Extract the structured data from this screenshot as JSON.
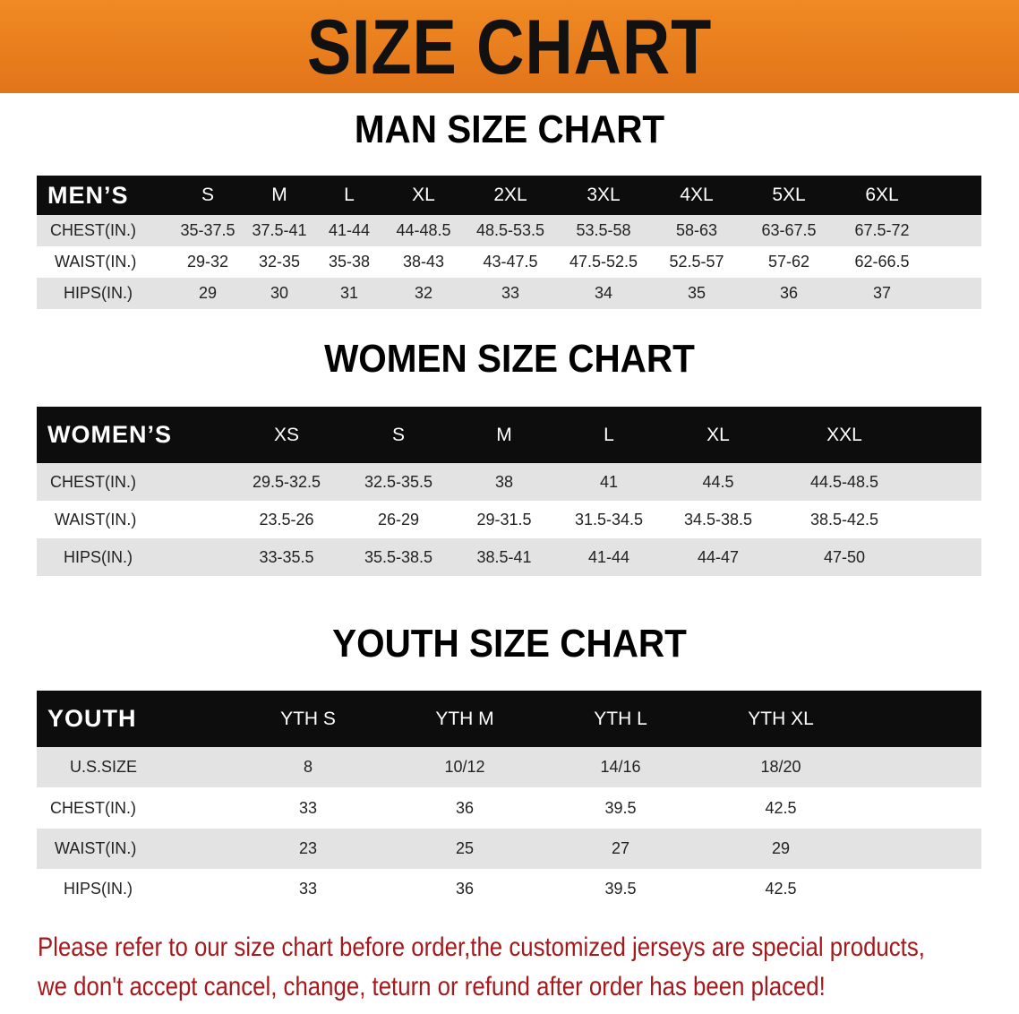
{
  "banner_title": "SIZE CHART",
  "men": {
    "title": "MAN SIZE CHART",
    "header_label": "MEN’S",
    "sizes": [
      "S",
      "M",
      "L",
      "XL",
      "2XL",
      "3XL",
      "4XL",
      "5XL",
      "6XL"
    ],
    "rows": [
      {
        "label": "CHEST(IN.)",
        "values": [
          "35-37.5",
          "37.5-41",
          "41-44",
          "44-48.5",
          "48.5-53.5",
          "53.5-58",
          "58-63",
          "63-67.5",
          "67.5-72"
        ]
      },
      {
        "label": "WAIST(IN.)",
        "values": [
          "29-32",
          "32-35",
          "35-38",
          "38-43",
          "43-47.5",
          "47.5-52.5",
          "52.5-57",
          "57-62",
          "62-66.5"
        ]
      },
      {
        "label": "HIPS(IN.)",
        "values": [
          "29",
          "30",
          "31",
          "32",
          "33",
          "34",
          "35",
          "36",
          "37"
        ]
      }
    ]
  },
  "women": {
    "title": "WOMEN SIZE CHART",
    "header_label": "WOMEN’S",
    "sizes": [
      "XS",
      "S",
      "M",
      "L",
      "XL",
      "XXL"
    ],
    "rows": [
      {
        "label": "CHEST(IN.)",
        "values": [
          "29.5-32.5",
          "32.5-35.5",
          "38",
          "41",
          "44.5",
          "44.5-48.5"
        ]
      },
      {
        "label": "WAIST(IN.)",
        "values": [
          "23.5-26",
          "26-29",
          "29-31.5",
          "31.5-34.5",
          "34.5-38.5",
          "38.5-42.5"
        ]
      },
      {
        "label": "HIPS(IN.)",
        "values": [
          "33-35.5",
          "35.5-38.5",
          "38.5-41",
          "41-44",
          "44-47",
          "47-50"
        ]
      }
    ]
  },
  "youth": {
    "title": "YOUTH SIZE CHART",
    "header_label": "YOUTH",
    "sizes": [
      "YTH S",
      "YTH M",
      "YTH L",
      "YTH XL"
    ],
    "rows": [
      {
        "label": "U.S.SIZE",
        "values": [
          "8",
          "10/12",
          "14/16",
          "18/20"
        ]
      },
      {
        "label": "CHEST(IN.)",
        "values": [
          "33",
          "36",
          "39.5",
          "42.5"
        ]
      },
      {
        "label": "WAIST(IN.)",
        "values": [
          "23",
          "25",
          "27",
          "29"
        ]
      },
      {
        "label": "HIPS(IN.)",
        "values": [
          "33",
          "36",
          "39.5",
          "42.5"
        ]
      }
    ]
  },
  "notice": {
    "line1": "Please refer to our size chart before order,the customized jerseys are special products,",
    "line2": "we don't accept cancel, change, teturn or refund after order has been placed!"
  },
  "colors": {
    "banner": "#e8781c",
    "header_row": "#0d0d0d",
    "stripe": "#e3e3e3",
    "notice": "#a3191c"
  }
}
